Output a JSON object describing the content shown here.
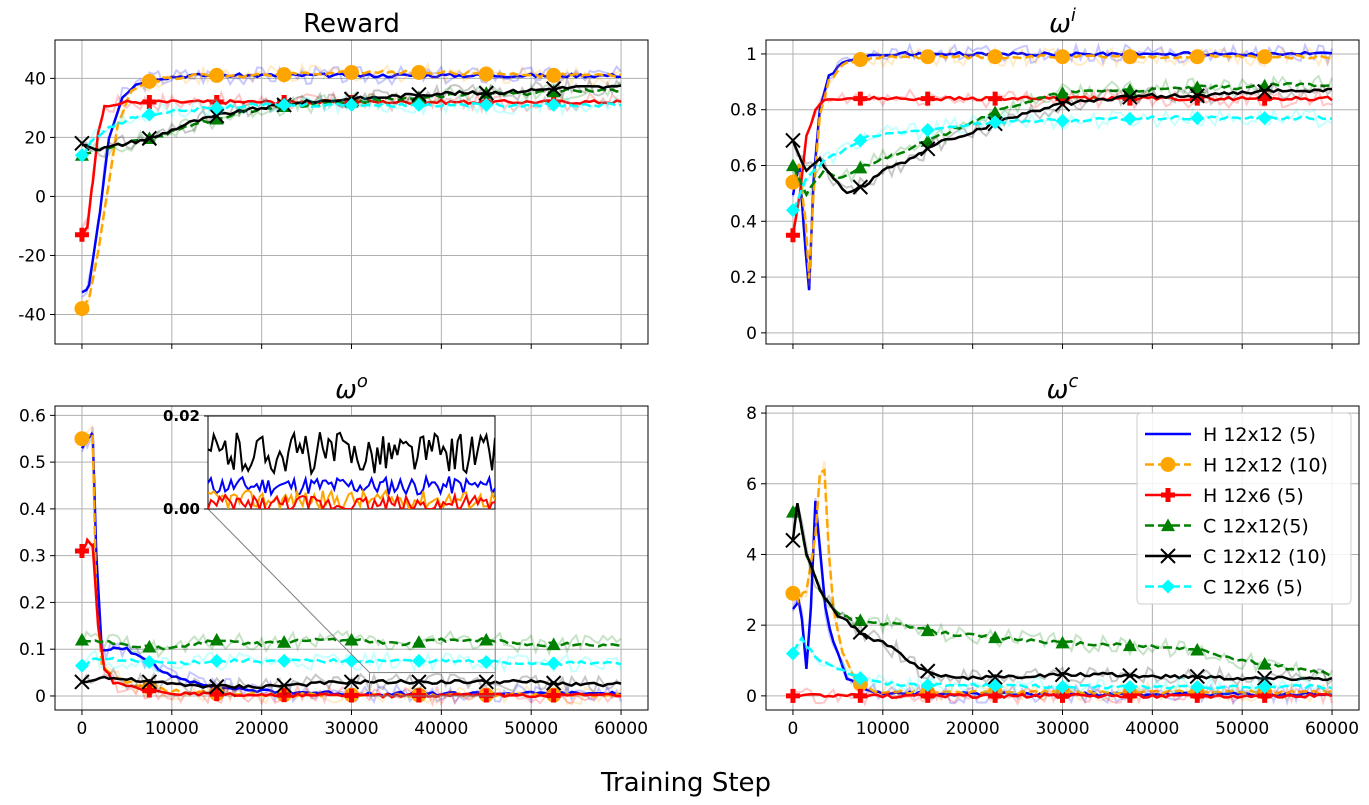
{
  "figure": {
    "xlabel": "Training Step",
    "legend_location": "upper-right of bottom-right panel"
  },
  "chart_data": [
    {
      "type": "line",
      "panel": "top-left",
      "title": "Reward",
      "title_math": {
        "base": "",
        "sup": ""
      },
      "xlim": [
        -3000,
        63000
      ],
      "ylim": [
        -50,
        53
      ],
      "xticks": [
        0,
        10000,
        20000,
        30000,
        40000,
        50000,
        60000
      ],
      "show_xtick_labels": false,
      "yticks": [
        -40,
        -20,
        0,
        20,
        40
      ],
      "grid": true,
      "series": [
        {
          "name": "H 12x12 (5)",
          "x": [
            0,
            800,
            2000,
            3000,
            4500,
            6000,
            8000,
            12000,
            20000,
            30000,
            40000,
            50000,
            60000
          ],
          "y": [
            -33,
            -30,
            -5,
            20,
            34,
            38,
            40,
            41,
            41,
            41,
            41,
            41,
            41
          ]
        },
        {
          "name": "H 12x12 (10)",
          "x": [
            0,
            800,
            2000,
            3000,
            4000,
            5500,
            7500,
            12000,
            20000,
            30000,
            40000,
            50000,
            60000
          ],
          "y": [
            -38,
            -35,
            -15,
            5,
            25,
            36,
            39,
            41,
            41,
            42,
            42,
            41,
            41
          ]
        },
        {
          "name": "H 12x6 (5)",
          "x": [
            0,
            600,
            1200,
            1800,
            2500,
            3500,
            5000,
            8000,
            20000,
            30000,
            40000,
            50000,
            60000
          ],
          "y": [
            -13,
            -10,
            5,
            22,
            30,
            31,
            32,
            32,
            32,
            32,
            32,
            32,
            32
          ]
        },
        {
          "name": "C 12x12(5)",
          "x": [
            0,
            2000,
            5000,
            8000,
            12000,
            16000,
            20000,
            25000,
            30000,
            35000,
            40000,
            45000,
            50000,
            55000,
            60000
          ],
          "y": [
            14,
            16,
            18,
            20,
            24,
            27,
            30,
            31,
            32,
            33,
            34,
            35,
            35,
            36,
            36
          ]
        },
        {
          "name": "C 12x12 (10)",
          "x": [
            0,
            2000,
            5000,
            8000,
            12000,
            16000,
            20000,
            25000,
            30000,
            35000,
            40000,
            45000,
            50000,
            55000,
            60000
          ],
          "y": [
            18,
            16,
            18,
            20,
            25,
            28,
            30,
            32,
            33,
            34,
            35,
            35,
            36,
            37,
            37
          ]
        },
        {
          "name": "C 12x6 (5)",
          "x": [
            0,
            1500,
            3500,
            6000,
            10000,
            15000,
            20000,
            30000,
            40000,
            50000,
            60000
          ],
          "y": [
            14,
            20,
            24,
            27,
            29,
            30,
            31,
            31,
            31,
            31,
            31
          ]
        }
      ]
    },
    {
      "type": "line",
      "panel": "top-right",
      "title": "",
      "title_math": {
        "base": "ω",
        "sup": "i"
      },
      "xlim": [
        -3000,
        63000
      ],
      "ylim": [
        -0.04,
        1.05
      ],
      "xticks": [
        0,
        10000,
        20000,
        30000,
        40000,
        50000,
        60000
      ],
      "show_xtick_labels": false,
      "yticks": [
        0.0,
        0.2,
        0.4,
        0.6,
        0.8,
        1.0
      ],
      "grid": true,
      "series": [
        {
          "name": "H 12x12 (5)",
          "x": [
            0,
            700,
            1400,
            1800,
            2300,
            3000,
            4000,
            5500,
            7500,
            12000,
            20000,
            30000,
            40000,
            50000,
            60000
          ],
          "y": [
            0.5,
            0.6,
            0.3,
            0.15,
            0.55,
            0.8,
            0.92,
            0.97,
            0.99,
            1.0,
            1.0,
            1.0,
            1.0,
            1.0,
            1.0
          ]
        },
        {
          "name": "H 12x12 (10)",
          "x": [
            0,
            700,
            1400,
            1800,
            2300,
            3000,
            4000,
            5500,
            7500,
            12000,
            20000,
            30000,
            40000,
            50000,
            60000
          ],
          "y": [
            0.54,
            0.6,
            0.4,
            0.2,
            0.5,
            0.78,
            0.9,
            0.96,
            0.98,
            0.99,
            0.99,
            0.99,
            0.99,
            0.99,
            0.99
          ]
        },
        {
          "name": "H 12x6 (5)",
          "x": [
            0,
            800,
            1500,
            2500,
            3500,
            5000,
            8000,
            20000,
            30000,
            40000,
            50000,
            60000
          ],
          "y": [
            0.35,
            0.5,
            0.7,
            0.8,
            0.83,
            0.84,
            0.84,
            0.84,
            0.84,
            0.84,
            0.84,
            0.84
          ]
        },
        {
          "name": "C 12x12(5)",
          "x": [
            0,
            1500,
            3500,
            5000,
            8000,
            12000,
            16000,
            20000,
            25000,
            30000,
            35000,
            40000,
            45000,
            50000,
            55000,
            60000
          ],
          "y": [
            0.6,
            0.5,
            0.58,
            0.55,
            0.6,
            0.65,
            0.7,
            0.76,
            0.82,
            0.86,
            0.87,
            0.87,
            0.88,
            0.88,
            0.89,
            0.89
          ]
        },
        {
          "name": "C 12x12 (10)",
          "x": [
            0,
            1500,
            3000,
            4500,
            6000,
            8000,
            10000,
            13000,
            16000,
            20000,
            25000,
            30000,
            35000,
            40000,
            45000,
            50000,
            55000,
            60000
          ],
          "y": [
            0.69,
            0.58,
            0.62,
            0.55,
            0.5,
            0.53,
            0.58,
            0.62,
            0.68,
            0.72,
            0.78,
            0.82,
            0.84,
            0.85,
            0.85,
            0.86,
            0.87,
            0.87
          ]
        },
        {
          "name": "C 12x6 (5)",
          "x": [
            0,
            1500,
            3500,
            6000,
            8000,
            12000,
            16000,
            20000,
            25000,
            30000,
            40000,
            50000,
            60000
          ],
          "y": [
            0.44,
            0.55,
            0.62,
            0.66,
            0.7,
            0.72,
            0.73,
            0.75,
            0.76,
            0.76,
            0.77,
            0.77,
            0.77
          ]
        }
      ]
    },
    {
      "type": "line",
      "panel": "bottom-left",
      "title": "",
      "title_math": {
        "base": "ω",
        "sup": "o"
      },
      "xlim": [
        -3000,
        63000
      ],
      "ylim": [
        -0.03,
        0.62
      ],
      "xticks": [
        0,
        10000,
        20000,
        30000,
        40000,
        50000,
        60000
      ],
      "show_xtick_labels": true,
      "yticks": [
        0.0,
        0.1,
        0.2,
        0.3,
        0.4,
        0.5,
        0.6
      ],
      "grid": true,
      "inset": {
        "ylim": [
          0.0,
          0.02
        ],
        "yticks": [
          0.0,
          0.02
        ],
        "ytick_labels": [
          "0.00",
          "0.02"
        ],
        "xlim": [
          32000,
          46000
        ],
        "source_box_data": {
          "x0": 32000,
          "x1": 46000,
          "y0": 0.0,
          "y1": 0.05
        }
      },
      "series": [
        {
          "name": "H 12x12 (5)",
          "x": [
            0,
            600,
            1200,
            1600,
            2200,
            3500,
            5000,
            7000,
            10000,
            15000,
            20000,
            30000,
            40000,
            50000,
            60000
          ],
          "y": [
            0.53,
            0.55,
            0.56,
            0.3,
            0.1,
            0.1,
            0.1,
            0.08,
            0.04,
            0.02,
            0.01,
            0.005,
            0.005,
            0.005,
            0.005
          ]
        },
        {
          "name": "H 12x12 (10)",
          "x": [
            0,
            600,
            1200,
            1600,
            2200,
            3500,
            5000,
            7000,
            10000,
            15000,
            20000,
            30000,
            40000,
            50000,
            60000
          ],
          "y": [
            0.55,
            0.56,
            0.56,
            0.2,
            0.07,
            0.04,
            0.03,
            0.02,
            0.01,
            0.005,
            0.003,
            0.002,
            0.002,
            0.002,
            0.002
          ]
        },
        {
          "name": "H 12x6 (5)",
          "x": [
            0,
            600,
            1200,
            1800,
            2500,
            3500,
            5000,
            8000,
            12000,
            20000,
            30000,
            40000,
            50000,
            60000
          ],
          "y": [
            0.31,
            0.33,
            0.32,
            0.15,
            0.06,
            0.03,
            0.02,
            0.01,
            0.005,
            0.002,
            0.001,
            0.001,
            0.001,
            0.001
          ]
        },
        {
          "name": "C 12x12(5)",
          "x": [
            0,
            5000,
            10000,
            15000,
            20000,
            25000,
            30000,
            35000,
            40000,
            45000,
            50000,
            55000,
            60000
          ],
          "y": [
            0.12,
            0.11,
            0.1,
            0.12,
            0.11,
            0.12,
            0.12,
            0.11,
            0.12,
            0.12,
            0.11,
            0.11,
            0.11
          ]
        },
        {
          "name": "C 12x12 (10)",
          "x": [
            0,
            2000,
            5000,
            10000,
            15000,
            20000,
            25000,
            30000,
            35000,
            40000,
            45000,
            50000,
            55000,
            60000
          ],
          "y": [
            0.03,
            0.04,
            0.035,
            0.025,
            0.02,
            0.02,
            0.025,
            0.03,
            0.03,
            0.03,
            0.03,
            0.03,
            0.025,
            0.025
          ]
        },
        {
          "name": "C 12x6 (5)",
          "x": [
            0,
            1500,
            5000,
            10000,
            15000,
            20000,
            30000,
            40000,
            50000,
            60000
          ],
          "y": [
            0.065,
            0.08,
            0.075,
            0.07,
            0.075,
            0.075,
            0.075,
            0.075,
            0.07,
            0.07
          ]
        }
      ]
    },
    {
      "type": "line",
      "panel": "bottom-right",
      "title": "",
      "title_math": {
        "base": "ω",
        "sup": "c"
      },
      "xlim": [
        -3000,
        63000
      ],
      "ylim": [
        -0.4,
        8.2
      ],
      "xticks": [
        0,
        10000,
        20000,
        30000,
        40000,
        50000,
        60000
      ],
      "show_xtick_labels": true,
      "yticks": [
        0,
        2,
        4,
        6,
        8
      ],
      "grid": true,
      "series": [
        {
          "name": "H 12x12 (5)",
          "x": [
            0,
            600,
            1000,
            1500,
            2000,
            2500,
            3000,
            3600,
            4500,
            6000,
            8000,
            10000,
            15000,
            20000,
            30000,
            40000,
            50000,
            60000
          ],
          "y": [
            2.5,
            2.7,
            2.2,
            0.8,
            2.5,
            5.5,
            4.2,
            2.5,
            1.5,
            0.5,
            0.2,
            0.1,
            0.05,
            0.05,
            0.05,
            0.05,
            0.05,
            0.05
          ]
        },
        {
          "name": "H 12x12 (10)",
          "x": [
            0,
            600,
            1500,
            2500,
            3000,
            3500,
            4000,
            4500,
            5500,
            7000,
            9000,
            12000,
            20000,
            30000,
            40000,
            50000,
            60000
          ],
          "y": [
            2.9,
            2.7,
            3.0,
            4.5,
            6.3,
            6.4,
            4.0,
            2.5,
            1.2,
            0.4,
            0.15,
            0.1,
            0.1,
            0.1,
            0.1,
            0.1,
            0.1
          ]
        },
        {
          "name": "H 12x6 (5)",
          "x": [
            0,
            10000,
            20000,
            30000,
            40000,
            50000,
            60000
          ],
          "y": [
            0.0,
            0.0,
            0.0,
            0.0,
            0.0,
            0.0,
            0.0
          ]
        },
        {
          "name": "C 12x12(5)",
          "x": [
            0,
            500,
            1500,
            3000,
            5000,
            8000,
            12000,
            16000,
            20000,
            25000,
            30000,
            35000,
            40000,
            45000,
            50000,
            55000,
            60000
          ],
          "y": [
            5.2,
            5.4,
            4.0,
            3.0,
            2.3,
            2.1,
            2.0,
            1.8,
            1.7,
            1.6,
            1.5,
            1.45,
            1.4,
            1.3,
            1.0,
            0.8,
            0.6
          ]
        },
        {
          "name": "C 12x12 (10)",
          "x": [
            0,
            500,
            1500,
            3000,
            5000,
            8000,
            10000,
            12000,
            14000,
            16000,
            20000,
            25000,
            30000,
            35000,
            40000,
            45000,
            50000,
            55000,
            60000
          ],
          "y": [
            4.4,
            5.5,
            4.0,
            3.0,
            2.3,
            1.7,
            1.5,
            1.2,
            0.8,
            0.6,
            0.5,
            0.55,
            0.6,
            0.6,
            0.55,
            0.55,
            0.5,
            0.5,
            0.5
          ]
        },
        {
          "name": "C 12x6 (5)",
          "x": [
            0,
            1000,
            2500,
            5000,
            7500,
            10000,
            15000,
            20000,
            30000,
            40000,
            50000,
            60000
          ],
          "y": [
            1.2,
            1.6,
            1.1,
            0.8,
            0.5,
            0.35,
            0.3,
            0.3,
            0.25,
            0.25,
            0.25,
            0.25
          ]
        }
      ]
    }
  ],
  "series_styles": [
    {
      "name": "H 12x12 (5)",
      "color": "#0000ff",
      "dash": "solid",
      "marker": "none"
    },
    {
      "name": "H 12x12 (10)",
      "color": "#ffa500",
      "dash": "dashed",
      "marker": "circle"
    },
    {
      "name": "H 12x6 (5)",
      "color": "#ff0000",
      "dash": "solid",
      "marker": "plus"
    },
    {
      "name": "C 12x12(5)",
      "color": "#008000",
      "dash": "dashed",
      "marker": "triangle"
    },
    {
      "name": "C 12x12 (10)",
      "color": "#000000",
      "dash": "solid",
      "marker": "x"
    },
    {
      "name": "C 12x6 (5)",
      "color": "#00ffff",
      "dash": "dashed",
      "marker": "diamond"
    }
  ]
}
